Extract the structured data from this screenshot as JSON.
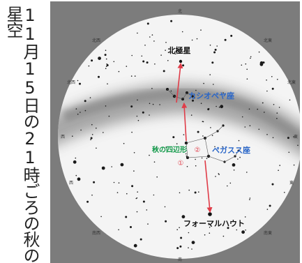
{
  "caption": "11月15日の21時ごろの秋の星空",
  "directions": {
    "north": "北",
    "south": "南",
    "northeast": "北東",
    "northwest": "北西",
    "east": "東",
    "west": "西",
    "southeast": "南東",
    "southwest": "南西",
    "ticks_left": [
      "北西",
      "西",
      "西",
      "南西"
    ],
    "ticks_right": [
      "北東",
      "東",
      "東",
      "南東"
    ]
  },
  "labels": {
    "polaris": "北極星",
    "cassiopeia": "カシオペヤ座",
    "square": "秋の四辺形",
    "pegasus": "ペガスス座",
    "fomalhaut": "フォーマルハウト",
    "step1": "①",
    "step2": "②"
  },
  "colors": {
    "background": "#7c7c7c",
    "sky": "#f4f4f4",
    "milky_way": "#9a9a9a",
    "arrow": "#e03c48",
    "blue_label": "#2a66c8",
    "green_label": "#129a4a"
  }
}
